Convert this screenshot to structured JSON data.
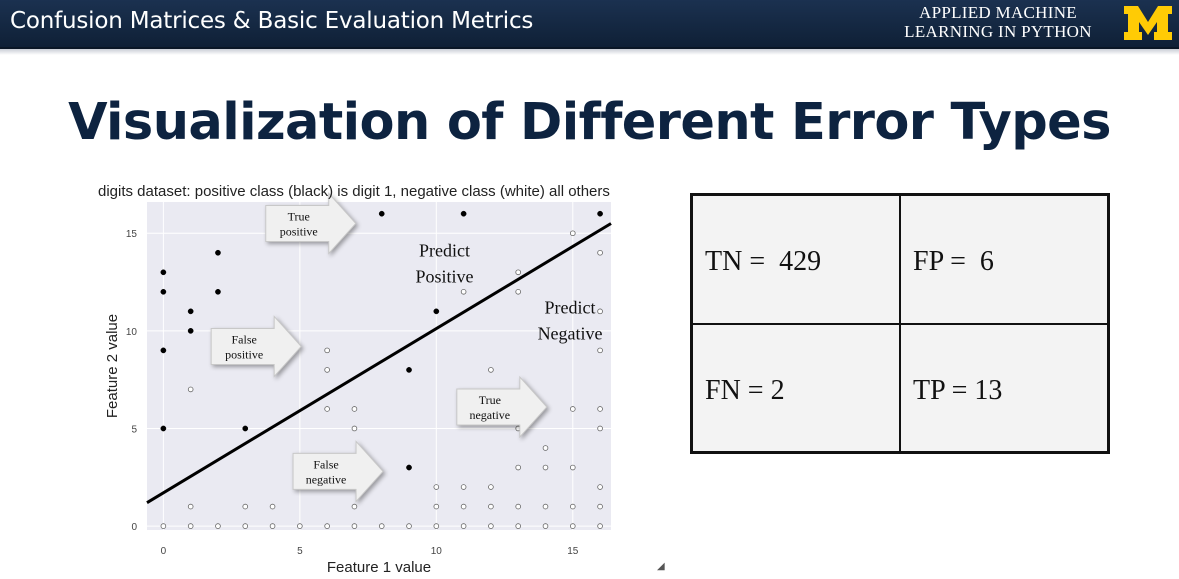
{
  "header": {
    "slide_title": "Confusion Matrices & Basic Evaluation Metrics",
    "brand_line1": "APPLIED MACHINE",
    "brand_line2": "LEARNING IN PYTHON",
    "logo_letter": "M",
    "logo_icon": "michigan-block-m-logo"
  },
  "heading": "Visualization of Different Error Types",
  "chart_data": {
    "type": "scatter",
    "title": "digits dataset: positive class (black) is digit 1, negative class (white) all others",
    "xlabel": "Feature 1 value",
    "ylabel": "Feature 2 value",
    "xlim": [
      -0.6,
      16.4
    ],
    "ylim": [
      -0.2,
      16.6
    ],
    "xticks": [
      0,
      5,
      10,
      15
    ],
    "yticks": [
      0,
      5,
      10,
      15
    ],
    "grid": true,
    "background": "#eaeaf2",
    "decision_boundary": [
      [
        -0.6,
        1.2
      ],
      [
        16.4,
        15.5
      ]
    ],
    "series": [
      {
        "name": "positive",
        "color": "#000000",
        "points": [
          [
            0,
            13
          ],
          [
            0,
            12
          ],
          [
            0,
            9
          ],
          [
            0,
            5
          ],
          [
            1,
            11
          ],
          [
            1,
            10
          ],
          [
            2,
            14
          ],
          [
            2,
            12
          ],
          [
            3,
            5
          ],
          [
            8,
            16
          ],
          [
            9,
            8
          ],
          [
            9,
            3
          ],
          [
            10,
            11
          ],
          [
            11,
            16
          ],
          [
            16,
            16
          ]
        ]
      },
      {
        "name": "negative",
        "color": "#ffffff",
        "points": [
          [
            0,
            0
          ],
          [
            1,
            0
          ],
          [
            2,
            0
          ],
          [
            3,
            0
          ],
          [
            4,
            0
          ],
          [
            5,
            0
          ],
          [
            6,
            0
          ],
          [
            7,
            0
          ],
          [
            8,
            0
          ],
          [
            9,
            0
          ],
          [
            10,
            0
          ],
          [
            11,
            0
          ],
          [
            12,
            0
          ],
          [
            13,
            0
          ],
          [
            14,
            0
          ],
          [
            15,
            0
          ],
          [
            16,
            0
          ],
          [
            1,
            1
          ],
          [
            3,
            1
          ],
          [
            4,
            1
          ],
          [
            7,
            1
          ],
          [
            10,
            1
          ],
          [
            11,
            1
          ],
          [
            12,
            1
          ],
          [
            13,
            1
          ],
          [
            14,
            1
          ],
          [
            15,
            1
          ],
          [
            16,
            1
          ],
          [
            10,
            2
          ],
          [
            11,
            2
          ],
          [
            12,
            2
          ],
          [
            16,
            2
          ],
          [
            13,
            3
          ],
          [
            14,
            3
          ],
          [
            15,
            3
          ],
          [
            14,
            4
          ],
          [
            7,
            5
          ],
          [
            13,
            5
          ],
          [
            16,
            5
          ],
          [
            6,
            6
          ],
          [
            7,
            6
          ],
          [
            15,
            6
          ],
          [
            16,
            6
          ],
          [
            1,
            7
          ],
          [
            6,
            8
          ],
          [
            12,
            8
          ],
          [
            6,
            9
          ],
          [
            16,
            9
          ],
          [
            16,
            11
          ],
          [
            11,
            12
          ],
          [
            13,
            12
          ],
          [
            13,
            13
          ],
          [
            16,
            14
          ],
          [
            15,
            15
          ]
        ]
      }
    ],
    "annotations": [
      {
        "text_lines": [
          "True",
          "positive"
        ],
        "x": 5.4,
        "y": 15.5
      },
      {
        "text_lines": [
          "False",
          "positive"
        ],
        "x": 3.4,
        "y": 9.2
      },
      {
        "text_lines": [
          "True",
          "negative"
        ],
        "x": 12.4,
        "y": 6.1
      },
      {
        "text_lines": [
          "False",
          "negative"
        ],
        "x": 6.4,
        "y": 2.8
      }
    ],
    "region_labels": [
      {
        "text_lines": [
          "Predict",
          "Positive"
        ],
        "x": 10.3,
        "y": 13.8
      },
      {
        "text_lines": [
          "Predict",
          "Negative"
        ],
        "x": 14.9,
        "y": 10.9
      }
    ]
  },
  "confusion_matrix": {
    "tn": "TN =  429",
    "fp": "FP =  6",
    "fn": "FN = 2",
    "tp": "TP = 13"
  }
}
